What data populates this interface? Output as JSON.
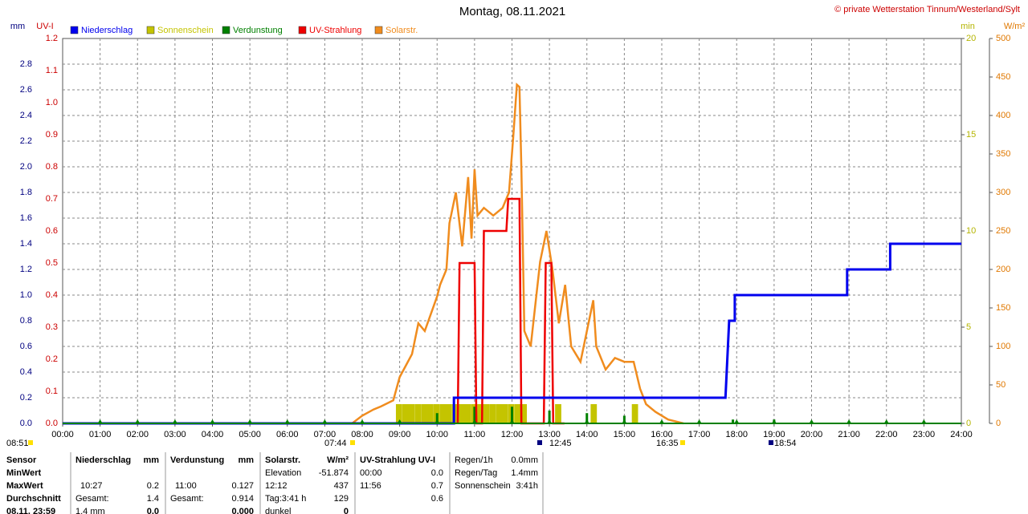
{
  "chart_data": {
    "type": "line",
    "title": "Montag, 08.11.2021",
    "copyright": "© private Wetterstation Tinnum/Westerland/Sylt",
    "grid": true,
    "xlim": [
      0,
      24
    ],
    "xticks": [
      {
        "value": 0,
        "label": "00:00"
      },
      {
        "value": 1,
        "label": "01:00"
      },
      {
        "value": 2,
        "label": "02:00"
      },
      {
        "value": 3,
        "label": "03:00"
      },
      {
        "value": 4,
        "label": "04:00"
      },
      {
        "value": 5,
        "label": "05:00"
      },
      {
        "value": 6,
        "label": "06:00"
      },
      {
        "value": 7,
        "label": "07:00"
      },
      {
        "value": 8,
        "label": "08:00"
      },
      {
        "value": 9,
        "label": "09:00"
      },
      {
        "value": 10,
        "label": "10:00"
      },
      {
        "value": 11,
        "label": "11:00"
      },
      {
        "value": 12,
        "label": "12:00"
      },
      {
        "value": 13,
        "label": "13:00"
      },
      {
        "value": 14,
        "label": "14:00"
      },
      {
        "value": 15,
        "label": "15:00"
      },
      {
        "value": 16,
        "label": "16:00"
      },
      {
        "value": 17,
        "label": "17:00"
      },
      {
        "value": 18,
        "label": "18:00"
      },
      {
        "value": 19,
        "label": "19:00"
      },
      {
        "value": 20,
        "label": "20:00"
      },
      {
        "value": 21,
        "label": "21:00"
      },
      {
        "value": 22,
        "label": "22:00"
      },
      {
        "value": 23,
        "label": "23:00"
      },
      {
        "value": 24,
        "label": "24:00"
      }
    ],
    "axes": [
      {
        "label": "mm",
        "color": "#000080",
        "lim": [
          0,
          3
        ],
        "ticks": [
          {
            "value": 0,
            "label": "0.0"
          },
          0.2,
          0.4,
          0.6,
          0.8,
          {
            "value": 1,
            "label": "1.0"
          },
          1.2,
          1.4,
          1.6,
          1.8,
          {
            "value": 2,
            "label": "2.0"
          },
          2.2,
          2.4,
          2.6,
          2.8
        ]
      },
      {
        "label": "UV-I",
        "color": "#cc0000",
        "lim": [
          0,
          1.2
        ],
        "ticks": [
          {
            "value": 0,
            "label": "0.0"
          },
          0.1,
          0.2,
          0.3,
          0.4,
          0.5,
          0.6,
          0.7,
          0.8,
          0.9,
          {
            "value": 1,
            "label": "1.0"
          },
          1.1,
          1.2
        ]
      },
      {
        "label": "min",
        "color": "#b4b400",
        "lim": [
          0,
          20
        ],
        "ticks": [
          0,
          5,
          10,
          15,
          20
        ]
      },
      {
        "label": "W/m²",
        "color": "#e07800",
        "lim": [
          0,
          500
        ],
        "ticks": [
          0,
          50,
          100,
          150,
          200,
          250,
          300,
          350,
          400,
          450,
          500
        ]
      }
    ],
    "series": [
      {
        "name": "Niederschlag",
        "color": "#0000ee",
        "axis": 0,
        "style": "line",
        "x": [
          0,
          10.45,
          10.45,
          17.7,
          17.8,
          17.95,
          17.95,
          20.95,
          20.95,
          22.1,
          22.1,
          24
        ],
        "values": [
          0,
          0,
          0.2,
          0.2,
          0.8,
          0.8,
          1.0,
          1.0,
          1.2,
          1.2,
          1.4,
          1.4
        ]
      },
      {
        "name": "Sonnenschein",
        "color": "#c4c400",
        "axis": 2,
        "style": "bar",
        "x": [
          8.9,
          9.07,
          9.23,
          9.4,
          9.57,
          9.73,
          9.9,
          10.07,
          10.23,
          10.4,
          10.57,
          10.73,
          10.9,
          11.07,
          11.23,
          11.4,
          11.57,
          11.73,
          11.9,
          12.07,
          12.23,
          13.15,
          14.1,
          15.2
        ],
        "values": [
          1,
          1,
          1,
          1,
          1,
          1,
          1,
          1,
          1,
          1,
          1,
          1,
          1,
          1,
          1,
          1,
          1,
          1,
          1,
          1,
          1,
          1,
          1,
          1
        ]
      },
      {
        "name": "Verdunstung",
        "color": "#008000",
        "axis": 0,
        "style": "spike",
        "x": [
          10.0,
          11.0,
          12.0,
          13.0,
          14.0,
          15.0,
          17.9,
          19.0
        ],
        "values": [
          0.08,
          0.13,
          0.13,
          0.1,
          0.08,
          0.06,
          0.03,
          0.03
        ]
      },
      {
        "name": "UV-Strahlung",
        "color": "#ee0000",
        "axis": 1,
        "style": "line",
        "x": [
          10.55,
          10.6,
          11.0,
          11.05,
          11.2,
          11.25,
          11.85,
          11.9,
          12.2,
          12.25,
          12.85,
          12.9,
          13.05,
          13.1,
          13.4
        ],
        "values": [
          0,
          0.5,
          0.5,
          0,
          0,
          0.6,
          0.6,
          0.7,
          0.7,
          0,
          0,
          0.5,
          0.5,
          0,
          0
        ]
      },
      {
        "name": "Solarstr.",
        "color": "#f08c1e",
        "axis": 3,
        "style": "line",
        "x": [
          7.73,
          8.0,
          8.3,
          8.5,
          8.83,
          9.0,
          9.33,
          9.5,
          9.67,
          10.0,
          10.08,
          10.25,
          10.33,
          10.5,
          10.67,
          10.83,
          10.92,
          11.0,
          11.08,
          11.25,
          11.5,
          11.75,
          11.92,
          12.03,
          12.13,
          12.2,
          12.25,
          12.33,
          12.5,
          12.75,
          12.92,
          13.08,
          13.25,
          13.42,
          13.58,
          13.83,
          14.17,
          14.25,
          14.5,
          14.75,
          15.0,
          15.25,
          15.42,
          15.58,
          15.83,
          16.17,
          16.58
        ],
        "values": [
          0,
          10,
          18,
          22,
          30,
          60,
          90,
          130,
          120,
          165,
          180,
          200,
          260,
          300,
          230,
          320,
          240,
          330,
          270,
          280,
          270,
          280,
          300,
          370,
          440,
          437,
          330,
          120,
          100,
          210,
          250,
          200,
          130,
          180,
          100,
          80,
          160,
          100,
          70,
          85,
          80,
          80,
          45,
          25,
          15,
          5,
          0
        ]
      }
    ],
    "markers": [
      "08:51",
      "07:44",
      "12:45",
      "16:35",
      "18:54"
    ],
    "table": {
      "rows": [
        [
          "Sensor",
          "Niederschlag",
          "mm",
          "Verdunstung",
          "mm",
          "Solarstr.",
          "W/m²",
          "UV-Strahlung UV-I",
          null,
          "Regen/1h",
          "0.0mm"
        ],
        [
          "MinWert",
          null,
          null,
          null,
          null,
          "Elevation",
          "-51.874",
          "00:00",
          "0.0",
          "Regen/Tag",
          "1.4mm"
        ],
        [
          "MaxWert",
          "10:27",
          "0.2",
          "11:00",
          "0.127",
          "12:12",
          "437",
          "11:56",
          "0.7",
          "Sonnenschein",
          "3:41h"
        ],
        [
          "Durchschnitt",
          "Gesamt:",
          "1.4",
          "Gesamt:",
          "0.914",
          "Tag:3:41 h",
          "129",
          null,
          "0.6",
          null,
          null
        ],
        [
          "08.11. 23:59",
          "1.4 mm",
          "0.0",
          null,
          "0.000",
          "dunkel",
          "0",
          null,
          null,
          null,
          null
        ]
      ]
    }
  }
}
